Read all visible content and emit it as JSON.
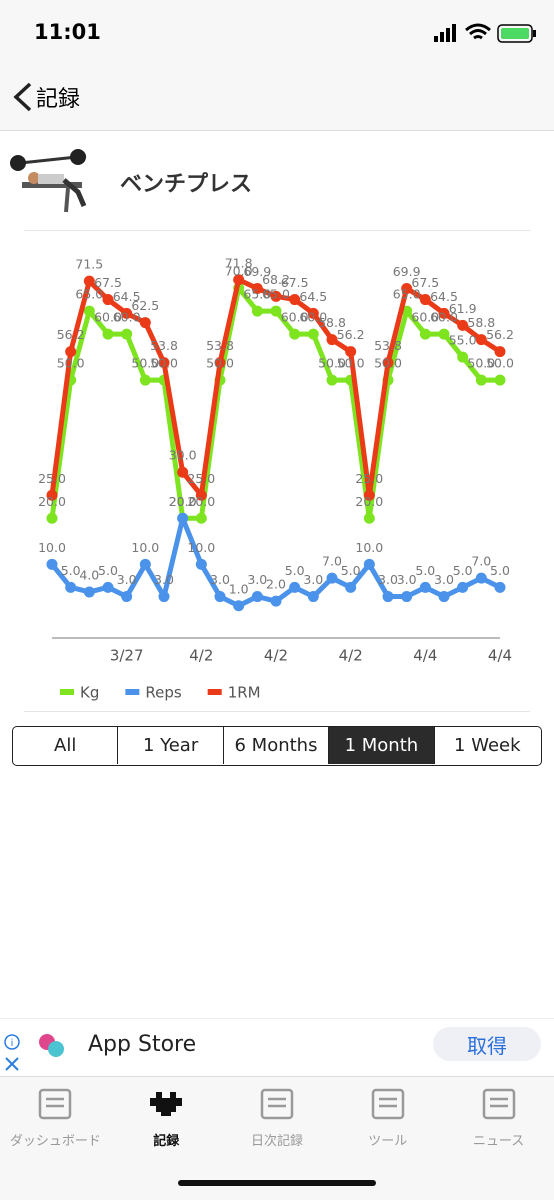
{
  "status": {
    "time": "11:01"
  },
  "nav": {
    "back": "記録"
  },
  "exercise": {
    "title": "ベンチプレス"
  },
  "chart_data": {
    "type": "line",
    "categories": [
      null,
      null,
      null,
      null,
      "3/27",
      null,
      null,
      null,
      "4/2",
      null,
      null,
      null,
      "4/2",
      null,
      null,
      null,
      "4/2",
      null,
      null,
      null,
      "4/4",
      null,
      null,
      null,
      "4/4"
    ],
    "ylim": [
      -6,
      80
    ],
    "legend": "bottom-left",
    "series": [
      {
        "name": "Kg",
        "color": "#7ee41f",
        "values": [
          20,
          50,
          65,
          60,
          60,
          50,
          50,
          20,
          20,
          50,
          70,
          65,
          65,
          60,
          60,
          50,
          50,
          20,
          50,
          65,
          60,
          60,
          55,
          50,
          50
        ],
        "value_labels": [
          "20.0",
          "50.0",
          "65.0",
          "60.0",
          "60.0",
          "50.0",
          "50.0",
          "20.0",
          "20.0",
          "50.0",
          "70.0",
          "65.0",
          "65.0",
          "60.0",
          "60.0",
          "50.0",
          "50.0",
          "20.0",
          "50.0",
          "65.0",
          "60.0",
          "60.0",
          "55.0",
          "50.0",
          "50.0"
        ]
      },
      {
        "name": "Reps",
        "color": "#4a92ea",
        "values": [
          10,
          5,
          4,
          5,
          3,
          10,
          3,
          20,
          10,
          3,
          1,
          3,
          2,
          5,
          3,
          7,
          5,
          10,
          3,
          3,
          5,
          3,
          5,
          7,
          5
        ],
        "value_labels": [
          "10.0",
          "5.0",
          "4.0",
          "5.0",
          "3.0",
          "10.0",
          "3.0",
          "20.0",
          "10.0",
          "3.0",
          "1.0",
          "3.0",
          "2.0",
          "5.0",
          "3.0",
          "7.0",
          "5.0",
          "10.0",
          "3.0",
          "3.0",
          "5.0",
          "3.0",
          "5.0",
          "7.0",
          "5.0"
        ]
      },
      {
        "name": "1RM",
        "color": "#ea3a17",
        "values": [
          25,
          56.2,
          71.5,
          67.5,
          64.5,
          62.5,
          53.8,
          30,
          25,
          53.8,
          71.8,
          69.9,
          68.2,
          67.5,
          64.5,
          58.8,
          56.2,
          25,
          53.8,
          69.9,
          67.5,
          64.5,
          61.9,
          58.8,
          56.2
        ],
        "value_labels": [
          "25.0",
          "56.2",
          "71.5",
          "67.5",
          "64.5",
          "62.5",
          "53.8",
          "30.0",
          "25.0",
          "53.8",
          "71.8",
          "69.9",
          "68.2",
          "67.5",
          "64.5",
          "58.8",
          "56.2",
          "25.0",
          "53.8",
          "69.9",
          "67.5",
          "64.5",
          "61.9",
          "58.8",
          "56.2"
        ]
      }
    ]
  },
  "segments": {
    "options": [
      "All",
      "1 Year",
      "6 Months",
      "1 Month",
      "1 Week"
    ],
    "selected": 3
  },
  "ad": {
    "title": "App Store",
    "button": "取得"
  },
  "tabs": {
    "items": [
      "ダッシュボード",
      "記録",
      "日次記録",
      "ツール",
      "ニュース"
    ],
    "active": 1
  }
}
